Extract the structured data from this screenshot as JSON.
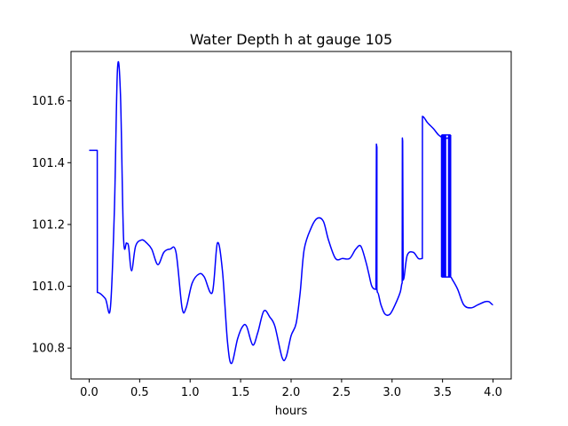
{
  "chart_data": {
    "type": "line",
    "title": "Water Depth h at gauge 105",
    "xlabel": "hours",
    "ylabel": "",
    "xlim": [
      -0.18,
      4.18
    ],
    "ylim": [
      100.7,
      101.76
    ],
    "xticks": [
      0.0,
      0.5,
      1.0,
      1.5,
      2.0,
      2.5,
      3.0,
      3.5,
      4.0
    ],
    "xtick_labels": [
      "0.0",
      "0.5",
      "1.0",
      "1.5",
      "2.0",
      "2.5",
      "3.0",
      "3.5",
      "4.0"
    ],
    "yticks": [
      100.8,
      101.0,
      101.2,
      101.4,
      101.6
    ],
    "ytick_labels": [
      "100.8",
      "101.0",
      "101.2",
      "101.4",
      "101.6"
    ],
    "grid": false,
    "legend": "none",
    "series": [
      {
        "color": "#0000ff",
        "x": [
          0.0,
          0.08,
          0.081,
          0.16,
          0.21,
          0.25,
          0.28,
          0.31,
          0.34,
          0.37,
          0.39,
          0.42,
          0.46,
          0.52,
          0.57,
          0.62,
          0.68,
          0.74,
          0.8,
          0.86,
          0.92,
          0.96,
          1.02,
          1.09,
          1.14,
          1.22,
          1.27,
          1.32,
          1.37,
          1.41,
          1.47,
          1.52,
          1.56,
          1.62,
          1.67,
          1.73,
          1.79,
          1.84,
          1.91,
          1.95,
          2.0,
          2.05,
          2.09,
          2.13,
          2.2,
          2.26,
          2.32,
          2.37,
          2.44,
          2.51,
          2.58,
          2.64,
          2.69,
          2.74,
          2.77,
          2.8,
          2.84,
          2.845,
          2.85,
          2.85,
          2.855,
          2.89,
          2.93,
          2.98,
          3.03,
          3.08,
          3.1,
          3.102,
          3.105,
          3.11,
          3.15,
          3.21,
          3.26,
          3.3,
          3.301,
          3.35,
          3.41,
          3.46,
          3.51,
          3.57,
          3.58,
          3.6,
          3.65,
          3.71,
          3.78,
          3.85,
          3.92,
          3.96,
          4.0
        ],
        "y": [
          101.44,
          101.44,
          100.98,
          100.96,
          100.93,
          101.25,
          101.7,
          101.62,
          101.16,
          101.14,
          101.13,
          101.05,
          101.13,
          101.15,
          101.14,
          101.12,
          101.07,
          101.11,
          101.12,
          101.11,
          100.93,
          100.93,
          101.01,
          101.04,
          101.03,
          100.98,
          101.14,
          101.05,
          100.82,
          100.75,
          100.83,
          100.87,
          100.87,
          100.81,
          100.85,
          100.92,
          100.9,
          100.87,
          100.77,
          100.77,
          100.84,
          100.88,
          100.98,
          101.12,
          101.19,
          101.22,
          101.21,
          101.15,
          101.09,
          101.09,
          101.09,
          101.12,
          101.13,
          101.08,
          101.04,
          101.0,
          100.99,
          101.46,
          101.45,
          100.99,
          100.98,
          100.94,
          100.91,
          100.91,
          100.94,
          100.98,
          101.01,
          101.48,
          101.47,
          101.02,
          101.1,
          101.11,
          101.09,
          101.09,
          101.55,
          101.53,
          101.51,
          101.49,
          101.48,
          101.48,
          101.03,
          101.02,
          100.99,
          100.94,
          100.93,
          100.94,
          100.95,
          100.95,
          100.94
        ]
      }
    ],
    "spikes": {
      "x": [
        3.49,
        3.5,
        3.51,
        3.52,
        3.53,
        3.56,
        3.57,
        3.58
      ],
      "y_low": 101.03,
      "y_high": 101.49
    }
  }
}
